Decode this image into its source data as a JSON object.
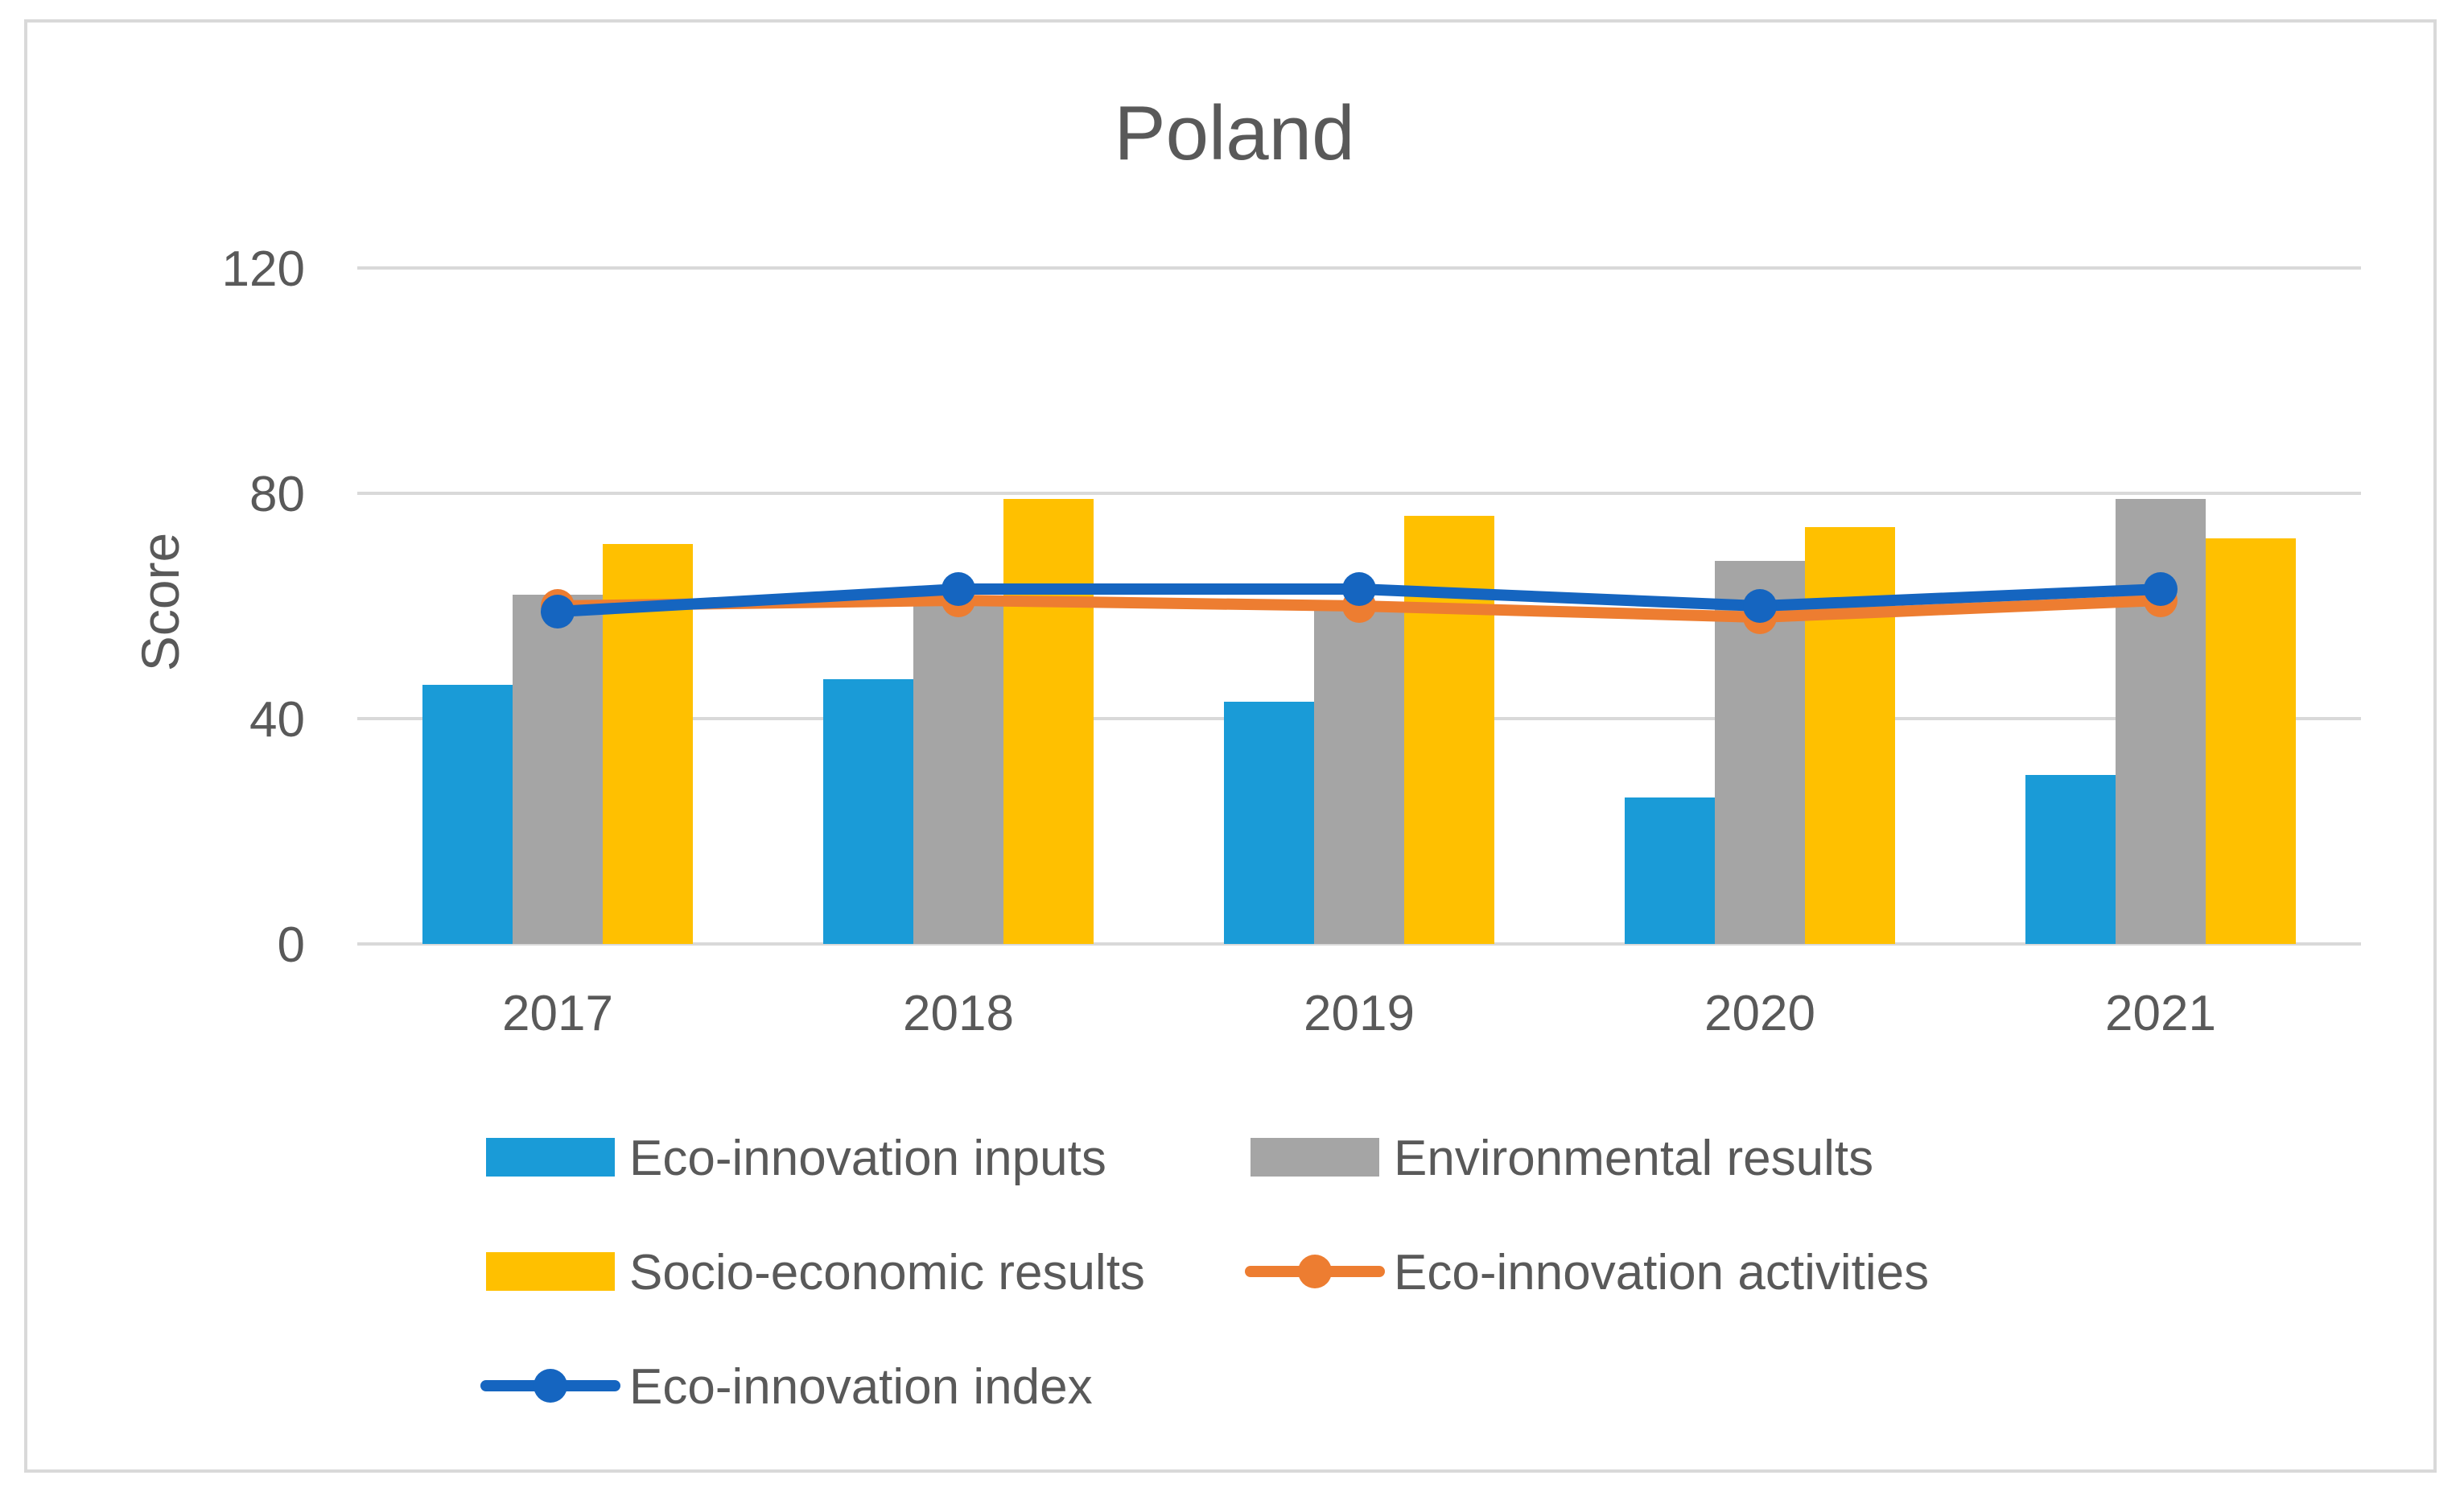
{
  "chart_data": {
    "type": "bar",
    "title": "Poland",
    "xlabel": "",
    "ylabel": "Score",
    "ylim": [
      0,
      120
    ],
    "yticks": [
      0,
      40,
      80,
      120
    ],
    "grid": true,
    "legend_position": "bottom",
    "categories": [
      "2017",
      "2018",
      "2019",
      "2020",
      "2021"
    ],
    "series": [
      {
        "name": "Eco-innovation inputs",
        "kind": "bar",
        "color": "#1a9bd7",
        "values": [
          46,
          47,
          43,
          26,
          30
        ]
      },
      {
        "name": "Environmental results",
        "kind": "bar",
        "color": "#a5a5a5",
        "values": [
          62,
          61,
          60,
          68,
          79
        ]
      },
      {
        "name": "Socio-economic results",
        "kind": "bar",
        "color": "#ffc000",
        "values": [
          71,
          79,
          76,
          74,
          72
        ]
      },
      {
        "name": "Eco-innovation activities",
        "kind": "line",
        "color": "#ed7d31",
        "values": [
          60,
          61,
          60,
          58,
          61
        ]
      },
      {
        "name": "Eco-innovation index",
        "kind": "line",
        "color": "#1565c0",
        "values": [
          59,
          63,
          63,
          60,
          63
        ]
      }
    ]
  }
}
